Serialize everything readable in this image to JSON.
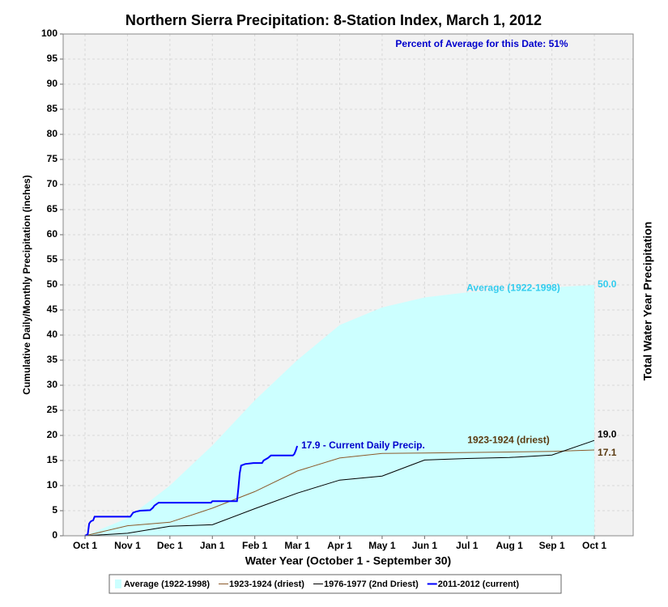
{
  "chart_data": {
    "type": "line",
    "title": "Northern Sierra Precipitation: 8-Station Index, March 1, 2012",
    "xlabel": "Water Year (October 1 - September 30)",
    "ylabel": "Cumulative Daily/Monthly Precipitation (inches)",
    "y2label": "Total Water Year Precipitation",
    "annotations": [
      "Percent of Average for this Date: 51%",
      "17.9 -  Current Daily Precip."
    ],
    "categories": [
      "Oct 1",
      "Nov 1",
      "Dec 1",
      "Jan 1",
      "Feb 1",
      "Mar 1",
      "Apr 1",
      "May 1",
      "Jun 1",
      "Jul 1",
      "Aug 1",
      "Sep 1",
      "Oct 1"
    ],
    "ylim": [
      0,
      100
    ],
    "yticks": [
      0,
      5,
      10,
      15,
      20,
      25,
      30,
      35,
      40,
      45,
      50,
      55,
      60,
      65,
      70,
      75,
      80,
      85,
      90,
      95,
      100
    ],
    "grid": true,
    "series": [
      {
        "name": "Average (1922-1998)",
        "color": "#ccffff",
        "label_color": "#33ccee",
        "fill": true,
        "values": [
          0,
          3.5,
          10,
          18,
          27,
          35,
          42,
          45.5,
          47.5,
          48.5,
          49,
          49.5,
          50
        ],
        "value_labels": [
          null,
          null,
          null,
          null,
          null,
          null,
          null,
          null,
          null,
          null,
          null,
          null,
          "50.0"
        ]
      },
      {
        "name": "1923-1924 (driest)",
        "color": "#8b5a2b",
        "label_color": "#5a3a10",
        "values": [
          0,
          2,
          2.7,
          5.5,
          8.8,
          12.9,
          15.5,
          16.4,
          16.5,
          16.6,
          16.7,
          16.8,
          17.1
        ],
        "value_labels": [
          null,
          null,
          null,
          null,
          null,
          null,
          null,
          null,
          null,
          null,
          null,
          null,
          "17.1"
        ]
      },
      {
        "name": "1976-1977 (2nd Driest)",
        "color": "#000000",
        "label_color": "#000000",
        "values": [
          0,
          0.5,
          1.9,
          2.2,
          5.4,
          8.5,
          11.1,
          11.9,
          15.1,
          15.4,
          15.6,
          16.1,
          19.0
        ],
        "value_labels": [
          null,
          null,
          null,
          null,
          null,
          null,
          null,
          null,
          null,
          null,
          null,
          null,
          "19.0"
        ]
      },
      {
        "name": "2011-2012 (current)",
        "color": "#0000ff",
        "width": 2,
        "x": [
          "Oct 1",
          "Oct 3",
          "Oct 4",
          "Oct 5",
          "Oct 6",
          "Oct 7",
          "Oct 8",
          "Nov 3",
          "Nov 5",
          "Nov 7",
          "Nov 10",
          "Nov 17",
          "Nov 19",
          "Nov 20",
          "Nov 22",
          "Nov 23",
          "Dec 31",
          "Jan 1",
          "Jan 19",
          "Jan 20",
          "Jan 21",
          "Jan 22",
          "Jan 25",
          "Jan 31",
          "Feb 6",
          "Feb 7",
          "Feb 10",
          "Feb 12",
          "Feb 27",
          "Feb 28",
          "Feb 29",
          "Mar 1"
        ],
        "values": [
          0,
          0.3,
          2.4,
          2.8,
          3.0,
          3.1,
          3.8,
          3.8,
          4.6,
          4.8,
          5.0,
          5.1,
          5.6,
          6.0,
          6.4,
          6.6,
          6.6,
          6.9,
          6.9,
          9.5,
          12.5,
          14.0,
          14.3,
          14.5,
          14.5,
          15.0,
          15.5,
          16.0,
          16.0,
          16.3,
          17.0,
          17.9
        ]
      }
    ]
  }
}
